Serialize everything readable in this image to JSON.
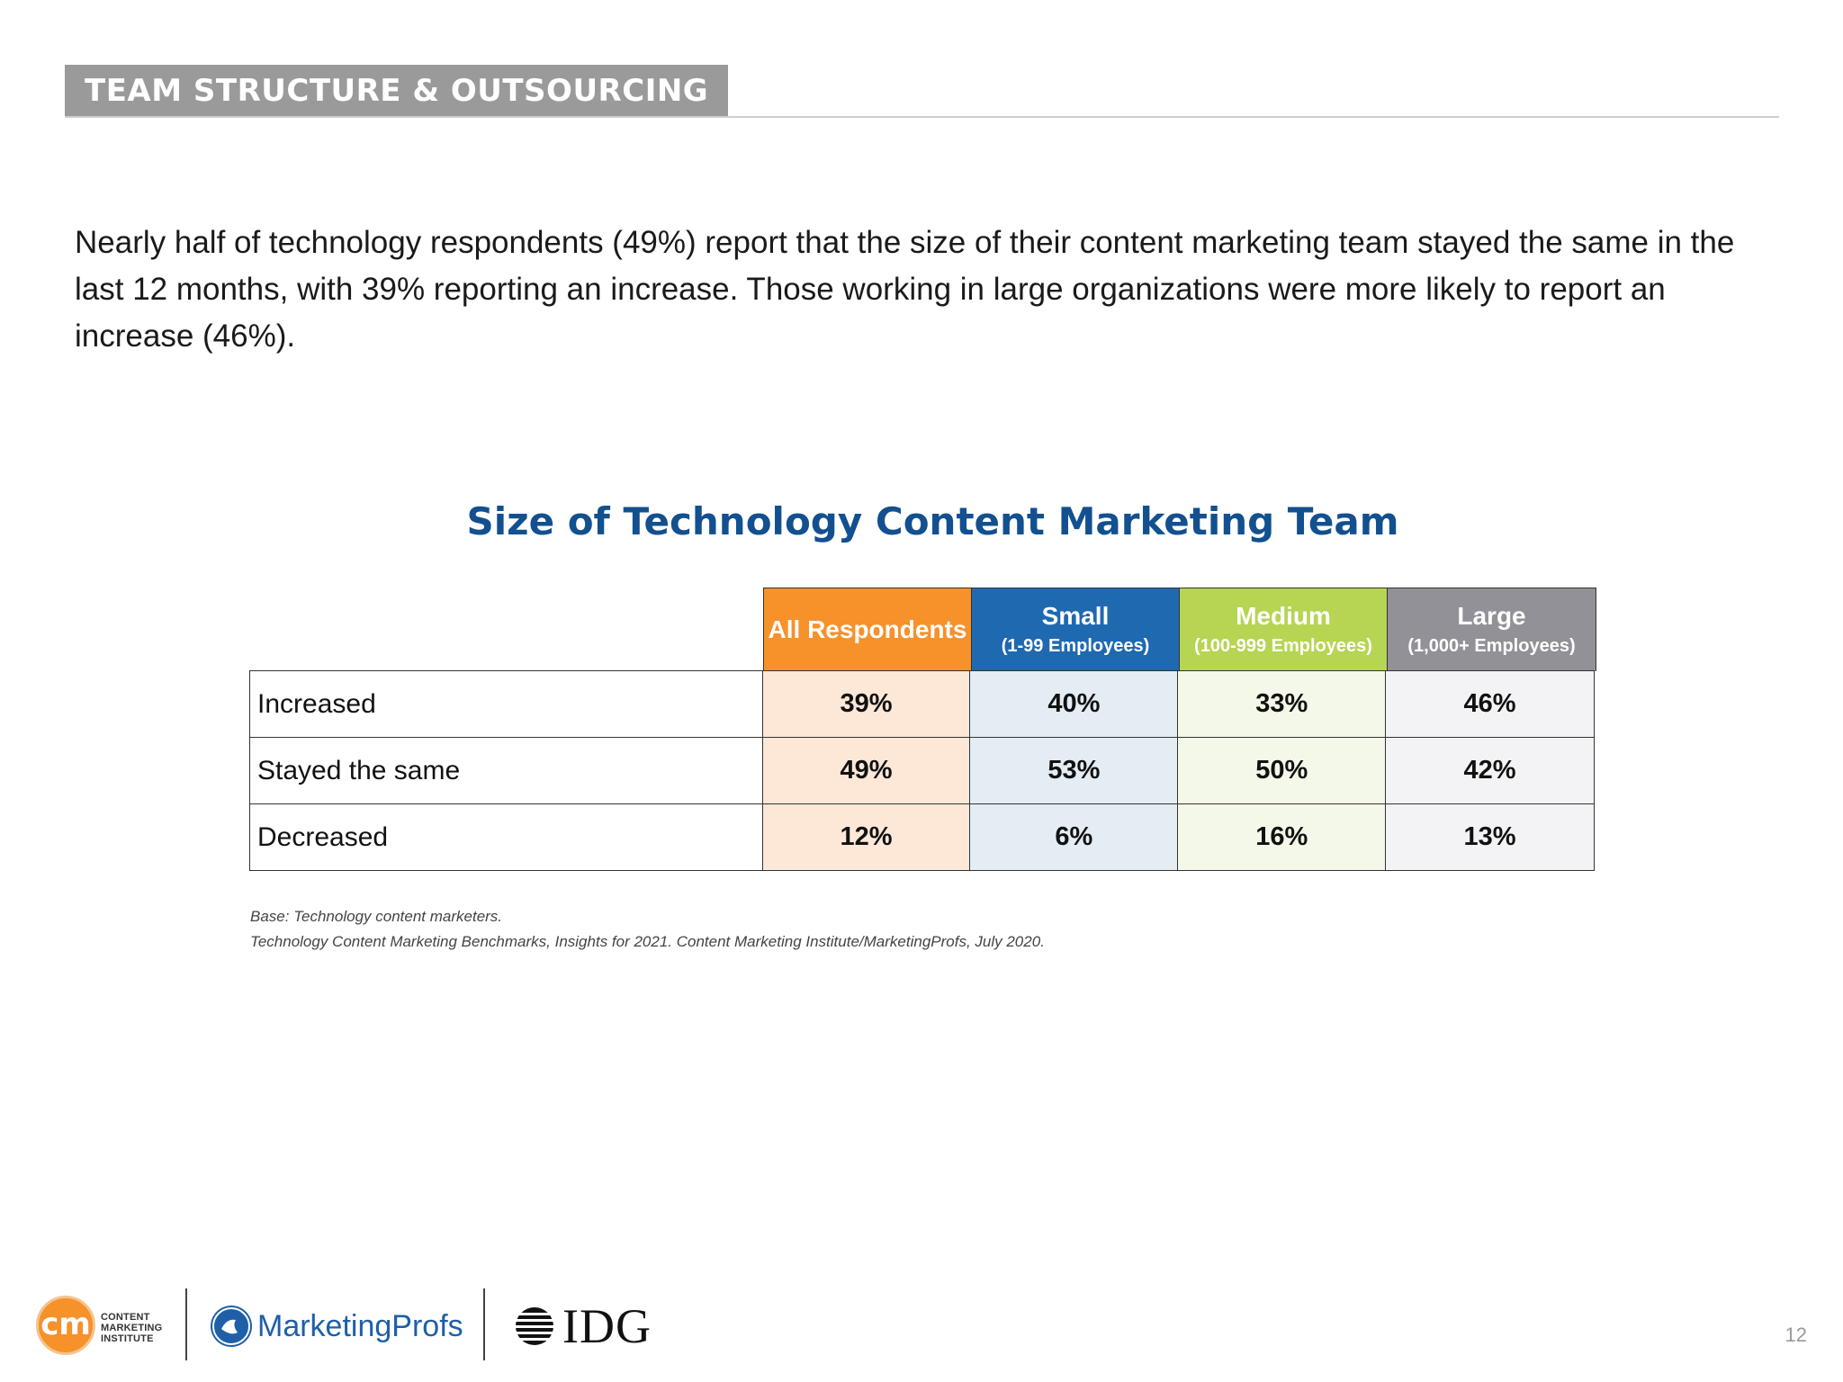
{
  "section": {
    "tag": "TEAM STRUCTURE & OUTSOURCING"
  },
  "intro": "Nearly half of technology respondents (49%) report that the size of their content marketing team stayed the same in the last 12 months, with 39% reporting an increase. Those working in large organizations were more likely to report an increase (46%).",
  "table": {
    "title": "Size of Technology Content Marketing Team",
    "columns": [
      {
        "label": "All Respondents",
        "sub": ""
      },
      {
        "label": "Small",
        "sub": "(1-99 Employees)"
      },
      {
        "label": "Medium",
        "sub": "(100-999 Employees)"
      },
      {
        "label": "Large",
        "sub": "(1,000+ Employees)"
      }
    ],
    "rows": [
      {
        "label": "Increased",
        "values": [
          "39%",
          "40%",
          "33%",
          "46%"
        ]
      },
      {
        "label": "Stayed the same",
        "values": [
          "49%",
          "53%",
          "50%",
          "42%"
        ]
      },
      {
        "label": "Decreased",
        "values": [
          "12%",
          "6%",
          "16%",
          "13%"
        ]
      }
    ]
  },
  "notes": {
    "base": "Base: Technology content marketers.",
    "source": "Technology Content Marketing Benchmarks, Insights for 2021. Content Marketing Institute/MarketingProfs, July 2020."
  },
  "footer": {
    "cmi_initials": "cm",
    "cmi_lines": [
      "CONTENT",
      "MARKETING",
      "INSTITUTE"
    ],
    "marketingprofs": "MarketingProfs",
    "idg": "IDG"
  },
  "page_number": "12",
  "colors": {
    "all_respondents": "#f7912a",
    "small": "#1f69b1",
    "medium": "#b6d553",
    "large": "#919197",
    "title": "#12508f"
  }
}
